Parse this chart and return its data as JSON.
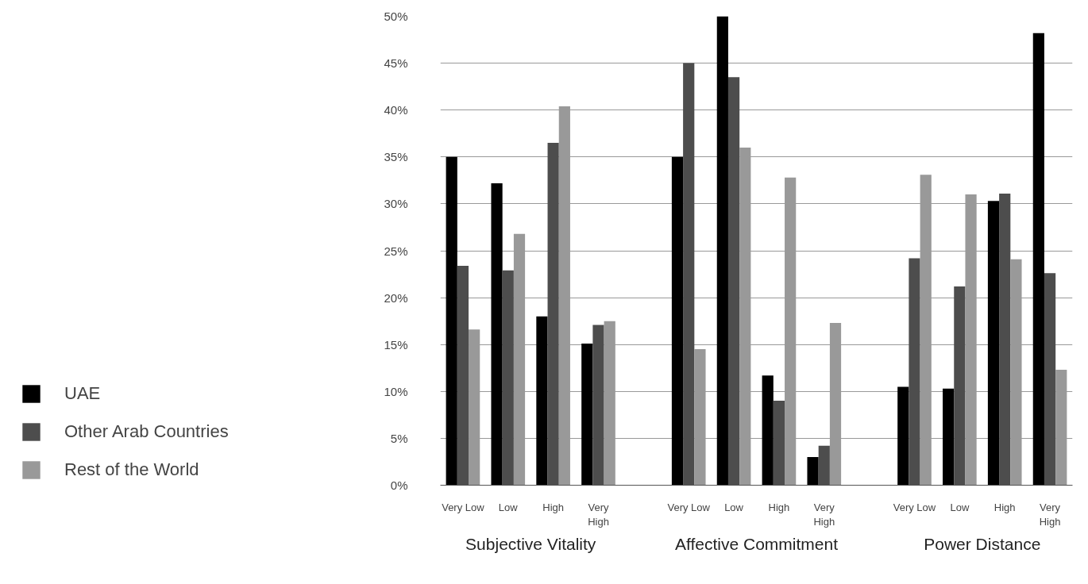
{
  "chart_data": {
    "type": "bar",
    "categories": [
      "Very Low",
      "Low",
      "High",
      "Very High",
      null,
      "Very Low",
      "Low",
      "High",
      "Very High",
      null,
      "Very Low",
      "Low",
      "High",
      "Very High"
    ],
    "series": [
      {
        "name": "UAE",
        "color": "#000000",
        "values": [
          35,
          32.2,
          18,
          15.1,
          null,
          35,
          50,
          11.7,
          3.0,
          null,
          10.5,
          10.3,
          30.3,
          48.2
        ]
      },
      {
        "name": "Other Arab Countries",
        "color": "#4d4d4d",
        "values": [
          23.4,
          22.9,
          36.5,
          17.1,
          null,
          45,
          43.5,
          9.0,
          4.2,
          null,
          24.2,
          21.2,
          31.1,
          22.6
        ]
      },
      {
        "name": "Rest of the World",
        "color": "#999999",
        "values": [
          16.6,
          26.8,
          40.4,
          17.5,
          null,
          14.5,
          36,
          32.8,
          17.3,
          null,
          33.1,
          31,
          24.1,
          12.3
        ]
      }
    ],
    "ylim": [
      0,
      50
    ],
    "yticks": [
      {
        "value": 0,
        "label": "0%"
      },
      {
        "value": 5,
        "label": "5%"
      },
      {
        "value": 10,
        "label": "10%"
      },
      {
        "value": 15,
        "label": "15%"
      },
      {
        "value": 20,
        "label": "20%"
      },
      {
        "value": 25,
        "label": "25%"
      },
      {
        "value": 30,
        "label": "30%"
      },
      {
        "value": 35,
        "label": "35%"
      },
      {
        "value": 40,
        "label": "40%"
      },
      {
        "value": 45,
        "label": "45%"
      },
      {
        "value": 50,
        "label": "50%"
      }
    ],
    "annotations": [
      "Subjective Vitality",
      "Affective Commitment",
      "Power Distance"
    ],
    "grid": "y",
    "legend": "left"
  }
}
